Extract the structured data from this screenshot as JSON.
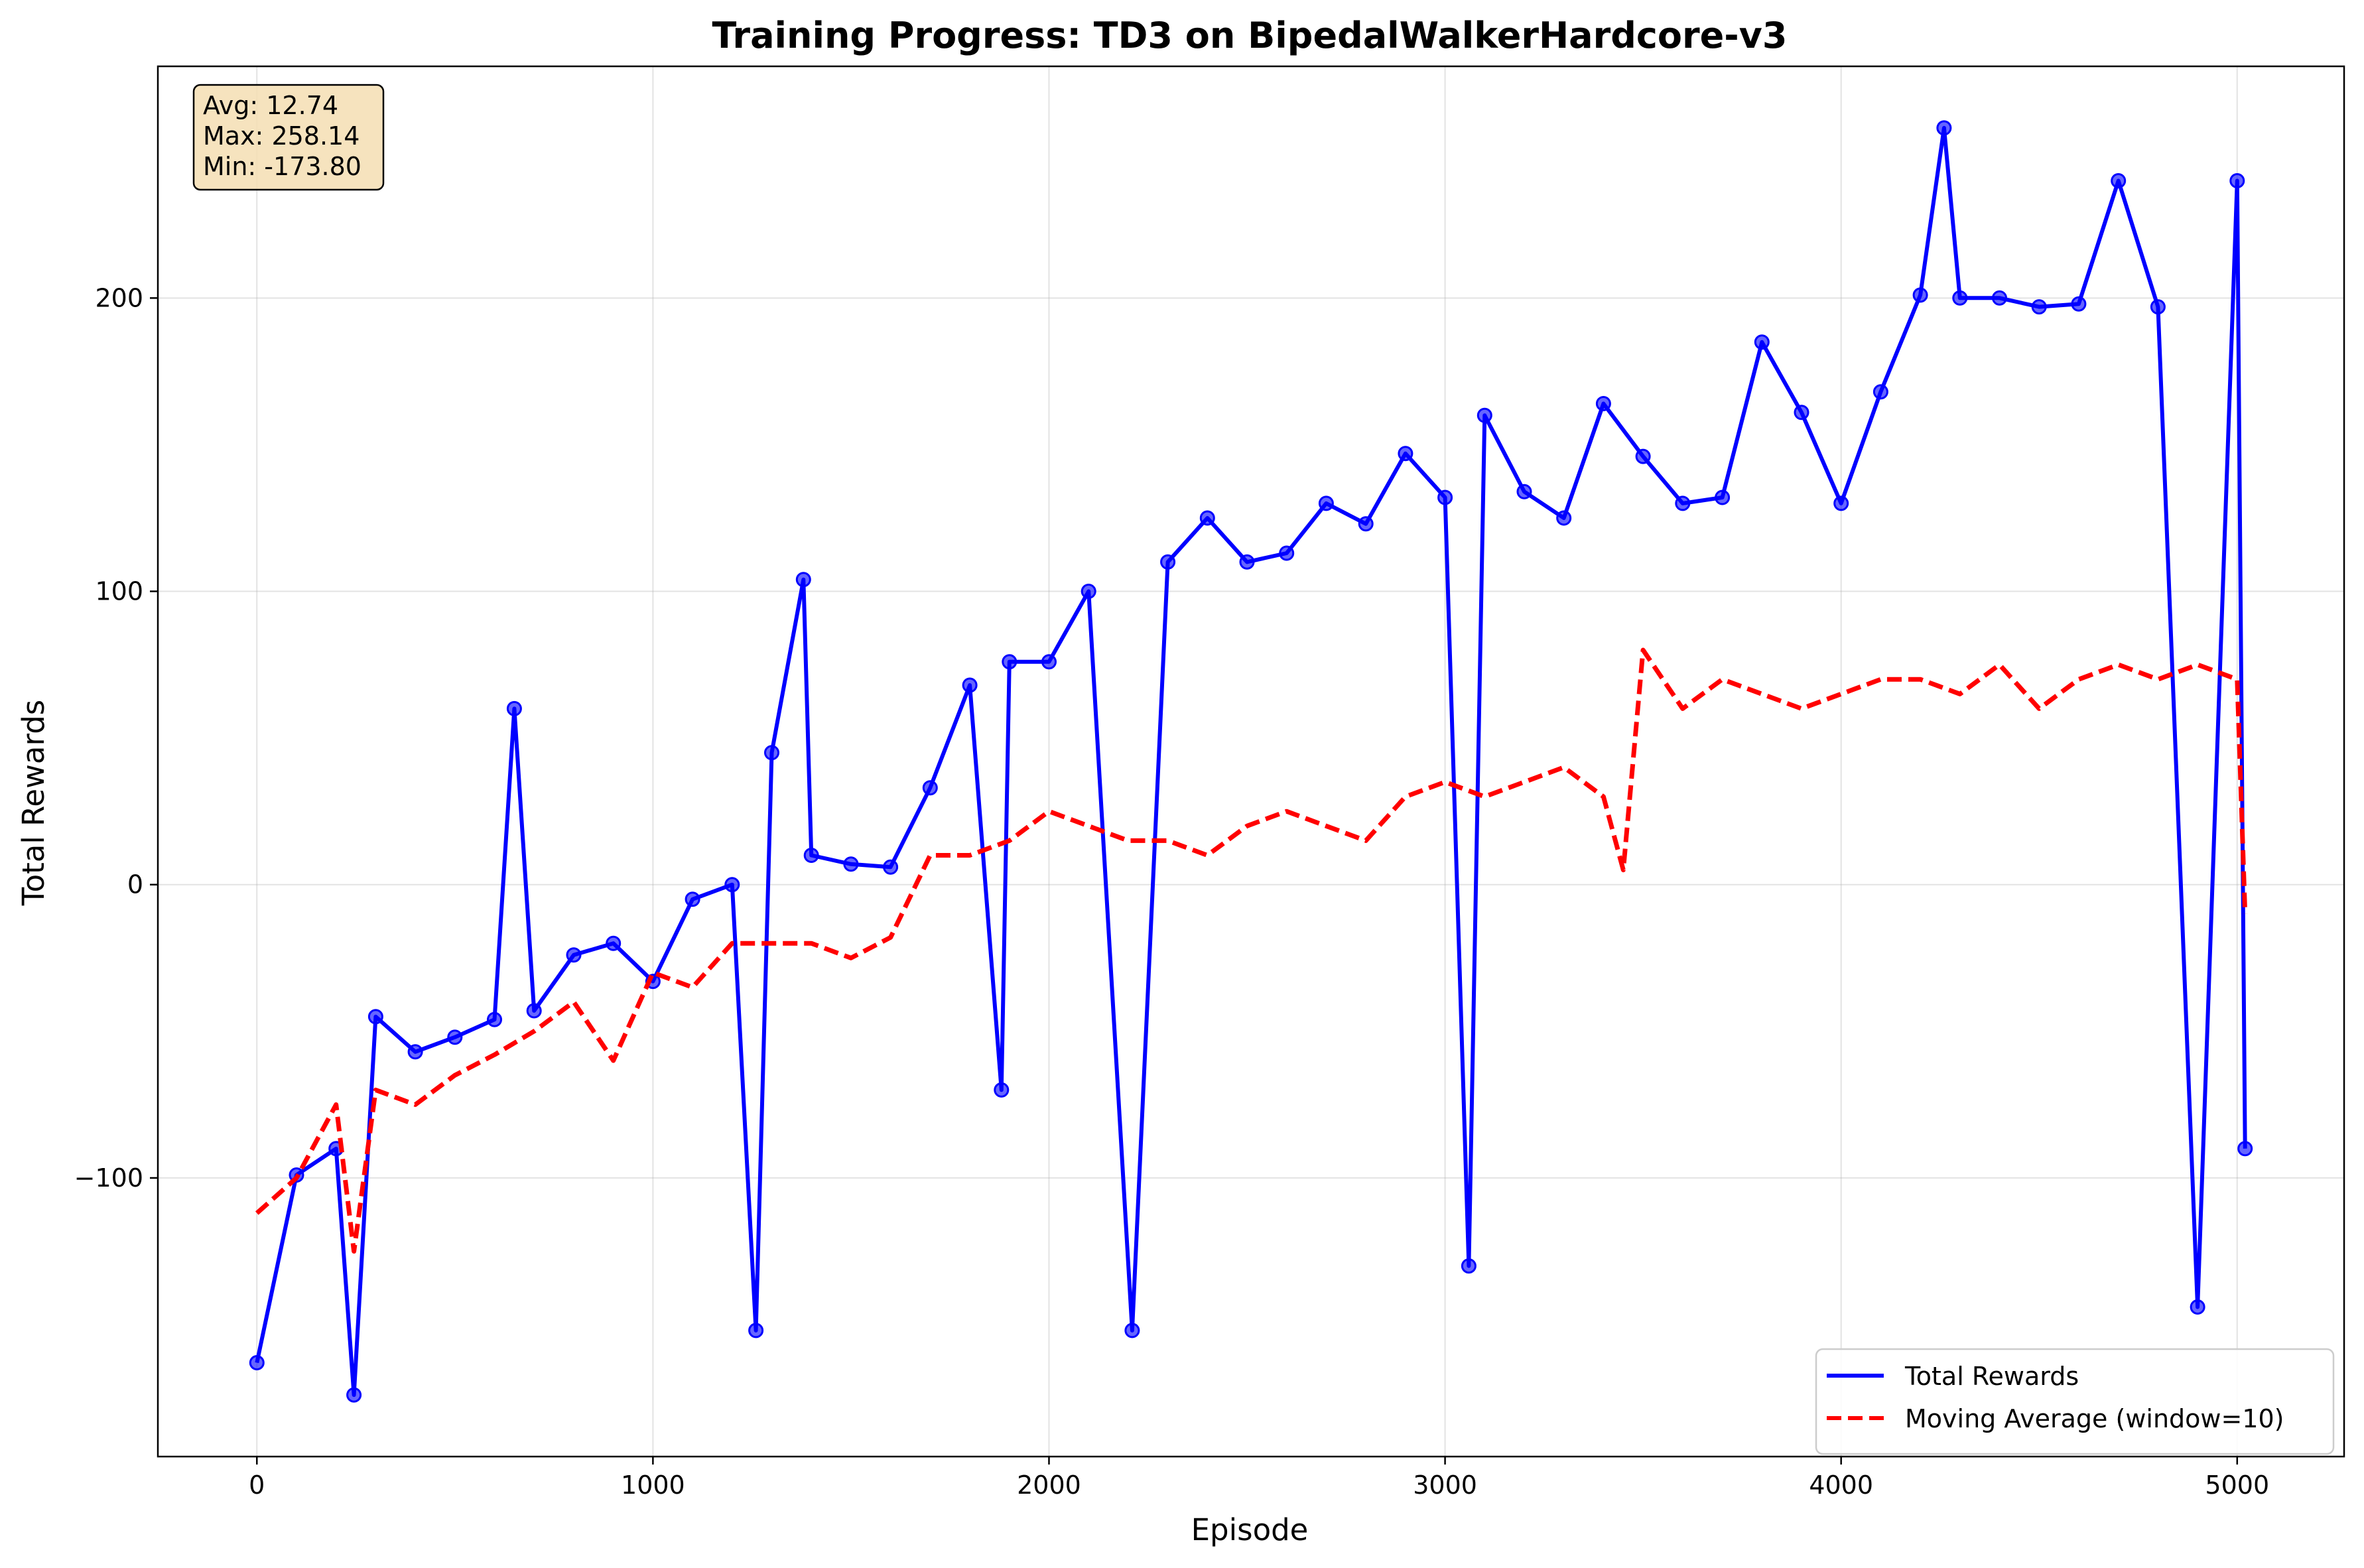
{
  "chart_data": {
    "type": "line",
    "title": "Training Progress: TD3 on BipedalWalkerHardcore-v3",
    "xlabel": "Episode",
    "ylabel": "Total Rewards",
    "xlim": [
      -250,
      5270
    ],
    "ylim": [
      -195,
      279
    ],
    "x_ticks": [
      0,
      1000,
      2000,
      3000,
      4000,
      5000
    ],
    "y_ticks": [
      -100,
      0,
      100,
      200
    ],
    "grid": true,
    "legend_position": "lower-right",
    "stats_box": {
      "avg": "Avg: 12.74",
      "max": "Max: 258.14",
      "min": "Min: -173.80"
    },
    "series": [
      {
        "name": "Total Rewards",
        "color": "#0000ff",
        "style": "solid",
        "markers": true,
        "x": [
          0,
          100,
          200,
          245,
          300,
          400,
          500,
          600,
          650,
          700,
          800,
          900,
          1000,
          1100,
          1200,
          1260,
          1300,
          1380,
          1400,
          1500,
          1600,
          1700,
          1800,
          1880,
          1900,
          2000,
          2100,
          2210,
          2300,
          2400,
          2500,
          2600,
          2700,
          2800,
          2900,
          3000,
          3060,
          3100,
          3200,
          3300,
          3400,
          3500,
          3600,
          3700,
          3800,
          3900,
          4000,
          4100,
          4200,
          4260,
          4300,
          4400,
          4500,
          4600,
          4700,
          4800,
          4900,
          5000,
          5020
        ],
        "y": [
          -163,
          -99,
          -90,
          -174,
          -45,
          -57,
          -52,
          -46,
          60,
          -43,
          -24,
          -20,
          -33,
          -5,
          0,
          -152,
          45,
          104,
          10,
          7,
          6,
          33,
          68,
          -70,
          76,
          76,
          100,
          -152,
          110,
          125,
          110,
          113,
          130,
          123,
          147,
          132,
          -130,
          160,
          134,
          125,
          164,
          146,
          130,
          132,
          185,
          161,
          130,
          168,
          201,
          258,
          200,
          200,
          197,
          198,
          240,
          197,
          -144,
          240,
          -90
        ]
      },
      {
        "name": "Moving Average (window=10)",
        "color": "#ff0000",
        "style": "dashed",
        "markers": false,
        "x": [
          0,
          100,
          200,
          245,
          300,
          400,
          500,
          600,
          700,
          800,
          900,
          1000,
          1100,
          1200,
          1300,
          1400,
          1500,
          1600,
          1700,
          1800,
          1900,
          2000,
          2100,
          2200,
          2300,
          2400,
          2500,
          2600,
          2700,
          2800,
          2900,
          3000,
          3100,
          3200,
          3300,
          3400,
          3450,
          3500,
          3600,
          3700,
          3800,
          3900,
          4000,
          4100,
          4200,
          4300,
          4400,
          4500,
          4600,
          4700,
          4800,
          4900,
          5000,
          5020
        ],
        "y": [
          -112,
          -100,
          -75,
          -125,
          -70,
          -75,
          -65,
          -58,
          -50,
          -40,
          -60,
          -30,
          -35,
          -20,
          -20,
          -20,
          -25,
          -18,
          10,
          10,
          15,
          25,
          20,
          15,
          15,
          10,
          20,
          25,
          20,
          15,
          30,
          35,
          30,
          35,
          40,
          30,
          5,
          80,
          60,
          70,
          65,
          60,
          65,
          70,
          70,
          65,
          75,
          60,
          70,
          75,
          70,
          75,
          70,
          -10
        ]
      }
    ]
  }
}
